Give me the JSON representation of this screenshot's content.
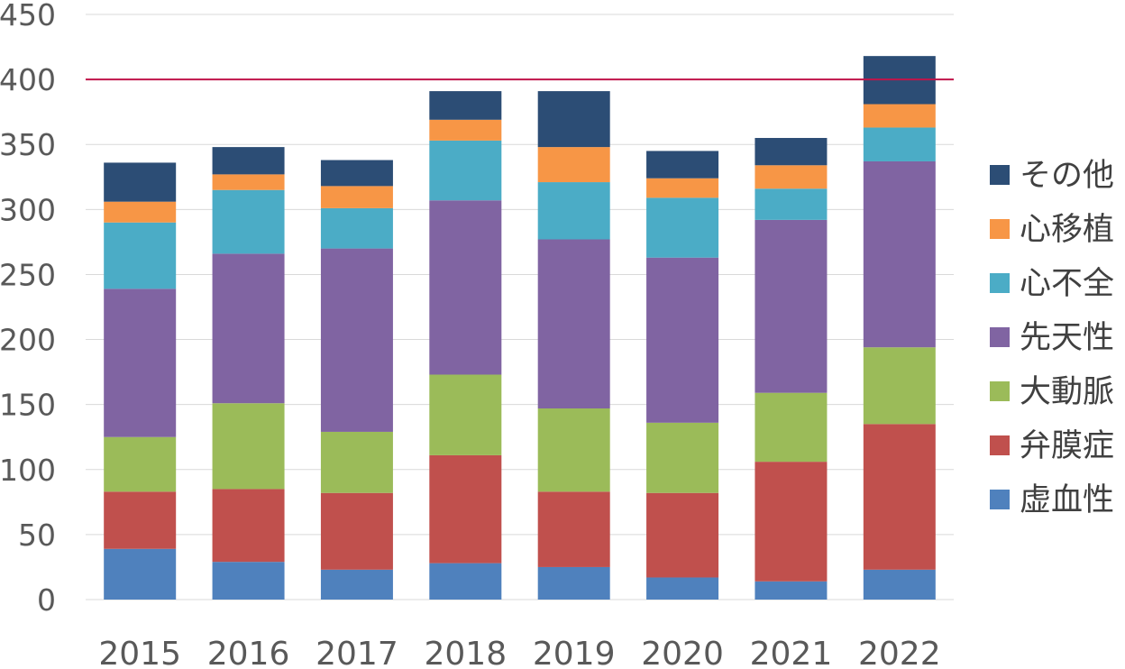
{
  "chart_data": {
    "type": "bar",
    "stacked": true,
    "categories": [
      "2015",
      "2016",
      "2017",
      "2018",
      "2019",
      "2020",
      "2021",
      "2022"
    ],
    "ylim": [
      0,
      450
    ],
    "yticks": [
      0,
      50,
      100,
      150,
      200,
      250,
      300,
      350,
      400,
      450
    ],
    "grid": true,
    "reference_line": {
      "value": 400,
      "color": "#C0144A"
    },
    "legend_position": "right",
    "series": [
      {
        "name": "虚血性",
        "color": "#4F81BD",
        "values": [
          39,
          29,
          23,
          28,
          25,
          17,
          14,
          23
        ]
      },
      {
        "name": "弁膜症",
        "color": "#C0504D",
        "values": [
          44,
          56,
          59,
          83,
          58,
          65,
          92,
          112
        ]
      },
      {
        "name": "大動脈",
        "color": "#9BBB59",
        "values": [
          42,
          66,
          47,
          62,
          64,
          54,
          53,
          59
        ]
      },
      {
        "name": "先天性",
        "color": "#8064A2",
        "values": [
          114,
          115,
          141,
          134,
          130,
          127,
          133,
          143
        ]
      },
      {
        "name": "心不全",
        "color": "#4BACC6",
        "values": [
          51,
          49,
          31,
          46,
          44,
          46,
          24,
          26
        ]
      },
      {
        "name": "心移植",
        "color": "#F79646",
        "values": [
          16,
          12,
          17,
          16,
          27,
          15,
          18,
          18
        ]
      },
      {
        "name": "その他",
        "color": "#2C4D75",
        "values": [
          30,
          21,
          20,
          22,
          43,
          21,
          21,
          37
        ]
      }
    ]
  }
}
